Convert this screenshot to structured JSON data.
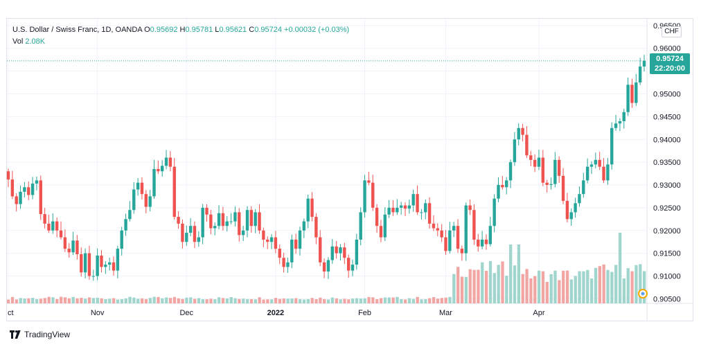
{
  "legend": {
    "symbol": "U.S. Dollar / Swiss Franc, 1D, OANDA",
    "open_label": "O",
    "open": "0.95692",
    "high_label": "H",
    "high": "0.95781",
    "low_label": "L",
    "low": "0.95621",
    "close_label": "C",
    "close": "0.95724",
    "change": "+0.00032 (+0.03%)",
    "vol_label": "Vol",
    "vol": "2.08K"
  },
  "price_axis": {
    "currency": "CHF",
    "last_price": "0.95724",
    "countdown": "22:20:00"
  },
  "footer": {
    "brand": "TradingView"
  },
  "colors": {
    "up": "#26a69a",
    "down": "#ef5350",
    "up_vol": "#9fd5cd",
    "down_vol": "#f2a6a4",
    "grid": "#f0f3fa"
  },
  "chart_data": {
    "type": "candlestick",
    "title": "U.S. Dollar / Swiss Franc, 1D, OANDA",
    "ylim": [
      0.904,
      0.9665
    ],
    "y_ticks": [
      "0.96500",
      "0.96000",
      "0.95500",
      "0.95000",
      "0.94500",
      "0.94000",
      "0.93500",
      "0.93000",
      "0.92500",
      "0.92000",
      "0.91500",
      "0.91000",
      "0.90500"
    ],
    "x_ticks": [
      {
        "label": "ct",
        "index": 0
      },
      {
        "label": "Nov",
        "index": 22
      },
      {
        "label": "Dec",
        "index": 44
      },
      {
        "label": "2022",
        "index": 66
      },
      {
        "label": "Feb",
        "index": 88
      },
      {
        "label": "Mar",
        "index": 108
      },
      {
        "label": "Apr",
        "index": 131
      }
    ],
    "last_price_line": 0.95724,
    "close": [
      0.9312,
      0.9275,
      0.9258,
      0.9285,
      0.9295,
      0.9278,
      0.9303,
      0.931,
      0.9236,
      0.9215,
      0.92,
      0.922,
      0.92,
      0.9185,
      0.916,
      0.9152,
      0.9178,
      0.9148,
      0.9108,
      0.915,
      0.91,
      0.91,
      0.9145,
      0.912,
      0.9125,
      0.913,
      0.9112,
      0.916,
      0.92,
      0.9225,
      0.9245,
      0.929,
      0.9305,
      0.928,
      0.9252,
      0.9275,
      0.9335,
      0.933,
      0.9342,
      0.936,
      0.934,
      0.923,
      0.9215,
      0.9175,
      0.9195,
      0.921,
      0.9175,
      0.9185,
      0.925,
      0.9235,
      0.9205,
      0.921,
      0.9238,
      0.921,
      0.922,
      0.922,
      0.924,
      0.919,
      0.92,
      0.9245,
      0.921,
      0.924,
      0.92,
      0.918,
      0.9175,
      0.9185,
      0.916,
      0.914,
      0.912,
      0.913,
      0.918,
      0.916,
      0.92,
      0.922,
      0.927,
      0.923,
      0.9185,
      0.913,
      0.911,
      0.9135,
      0.9165,
      0.915,
      0.9163,
      0.914,
      0.9112,
      0.9125,
      0.918,
      0.924,
      0.931,
      0.9305,
      0.925,
      0.921,
      0.9185,
      0.9235,
      0.925,
      0.924,
      0.925,
      0.9255,
      0.9248,
      0.9255,
      0.928,
      0.924,
      0.924,
      0.926,
      0.9215,
      0.9205,
      0.92,
      0.9185,
      0.9155,
      0.92,
      0.921,
      0.916,
      0.915,
      0.9255,
      0.9245,
      0.918,
      0.9165,
      0.918,
      0.917,
      0.921,
      0.927,
      0.93,
      0.9295,
      0.931,
      0.935,
      0.94,
      0.9425,
      0.941,
      0.9365,
      0.9355,
      0.934,
      0.936,
      0.9305,
      0.93,
      0.9302,
      0.9355,
      0.932,
      0.9265,
      0.9225,
      0.924,
      0.926,
      0.928,
      0.931,
      0.934,
      0.9345,
      0.9355,
      0.934,
      0.931,
      0.9345,
      0.9425,
      0.9435,
      0.944,
      0.946,
      0.952,
      0.948,
      0.9525,
      0.956,
      0.95724
    ],
    "series": [
      {
        "name": "Vol"
      }
    ]
  }
}
